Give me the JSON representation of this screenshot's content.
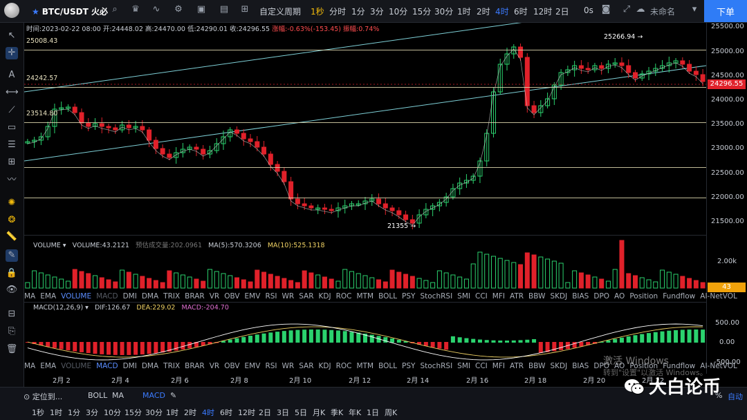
{
  "toolbar": {
    "pair": "BTC/USDT 火必",
    "custom_period": "自定义周期",
    "timeframes": [
      "1秒",
      "分时",
      "1分",
      "3分",
      "10分",
      "15分",
      "30分",
      "1时",
      "2时",
      "4时",
      "6时",
      "12时",
      "2日"
    ],
    "active_timeframe": "4时",
    "seconds": "0s",
    "unnamed": "未命名",
    "order": "下单"
  },
  "info": {
    "time": "时间:2023-02-22 08:00",
    "open": "开:24448.02",
    "high": "高:24470.00",
    "low": "低:24290.01",
    "close": "收:24296.55",
    "change": "涨幅:-0.63%(-153.45)",
    "amplitude": "振幅:0.74%"
  },
  "levels": {
    "l1": "25008.43",
    "l2": "24242.57",
    "l3": "23514.80",
    "high_mark": "25266.94 →",
    "low_mark": "21355 →"
  },
  "price_axis": [
    "25500.00",
    "25000.00",
    "24500.00",
    "24000.00",
    "23500.00",
    "23000.00",
    "22500.00",
    "22000.00",
    "21500.00"
  ],
  "current_price": "24296.55",
  "volume": {
    "header": "VOLUME",
    "value": "VOLUME:43.2121",
    "est": "预估成交量:202.0961",
    "ma5": "MA(5):570.3206",
    "ma10": "MA(10):525.1318",
    "axis": "2.00k",
    "badge": "43"
  },
  "indicators": [
    "MA",
    "EMA",
    "VOLUME",
    "MACD",
    "DMI",
    "DMA",
    "TRIX",
    "BRAR",
    "VR",
    "OBV",
    "EMV",
    "RSI",
    "WR",
    "SAR",
    "KDJ",
    "ROC",
    "MTM",
    "BOLL",
    "PSY",
    "StochRSI",
    "SMI",
    "CCI",
    "MFI",
    "ATR",
    "BBW",
    "SKDJ",
    "BIAS",
    "DPO",
    "AO",
    "Position",
    "Fundflow",
    "AI-NetVOL"
  ],
  "macd": {
    "header": "MACD(12,26,9)",
    "dif": "DIF:126.67",
    "dea": "DEA:229.02",
    "macd": "MACD:-204.70",
    "axis": [
      "500.00",
      "0.00",
      "-500.00"
    ]
  },
  "dates": [
    "2月 2",
    "2月 4",
    "2月 6",
    "2月 8",
    "2月 10",
    "2月 12",
    "2月 14",
    "2月 16",
    "2月 18",
    "2月 20",
    "2月 22"
  ],
  "bottom": {
    "locate": "定位到...",
    "boll": "BOLL",
    "ma": "MA",
    "macd": "MACD",
    "pct": "%",
    "auto": "自动",
    "timeframes": [
      "1秒",
      "1时",
      "1分",
      "3分",
      "10分",
      "15分",
      "30分",
      "1时",
      "2时",
      "4时",
      "6时",
      "12时",
      "2日",
      "3日",
      "5日",
      "月K",
      "季K",
      "年K",
      "1日",
      "周K"
    ]
  },
  "watermark": {
    "line1": "激活 Windows",
    "line2": "转到\"设置\"以激活 Windows。"
  },
  "brand": "大白论币",
  "colors": {
    "up": "#2bd26e",
    "down": "#e0212a",
    "accent": "#3b7bff",
    "level": "#e3dcb1",
    "trend": "#7fd1d8"
  }
}
